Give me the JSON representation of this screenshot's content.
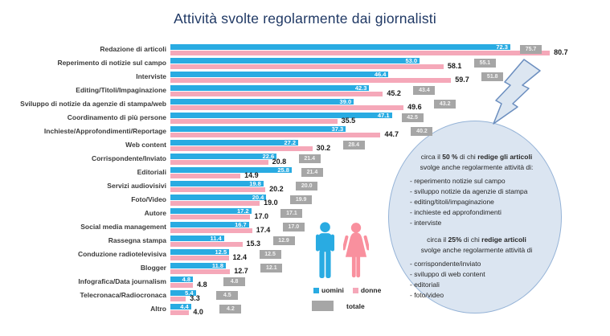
{
  "title": "Attività svolte regolarmente dai giornalisti",
  "colors": {
    "uomini": "#29ABE2",
    "donne": "#F5A8B9",
    "totale": "#A6A6A6",
    "title_text": "#1F3864",
    "bubble_fill": "#DBE5F1",
    "bubble_border": "#95B3D7",
    "bolt_fill": "#DCE6F1",
    "bolt_border": "#6B8EBF",
    "icon_male": "#29ABE2",
    "icon_female": "#F9909E"
  },
  "chart_data": {
    "type": "bar",
    "orientation": "horizontal",
    "xlim": [
      0,
      85
    ],
    "grid": false,
    "legend_position": "bottom-center",
    "categories": [
      "Redazione di articoli",
      "Reperimento di notizie sul campo",
      "Interviste",
      "Editing/Titoli/Impaginazione",
      "Sviluppo di notizie da agenzie di stampa/web",
      "Coordinamento di più persone",
      "Inchieste/Approfondimenti/Reportage",
      "Web content",
      "Corrispondente/Inviato",
      "Editoriali",
      "Servizi audiovisivi",
      "Foto/Video",
      "Autore",
      "Social media management",
      "Rassegna stampa",
      "Conduzione radiotelevisiva",
      "Blogger",
      "Infografica/Data journalism",
      "Telecronaca/Radiocronaca",
      "Altro"
    ],
    "series": [
      {
        "name": "uomini",
        "color": "#29ABE2",
        "values": [
          72.3,
          53.0,
          46.4,
          42.3,
          39.0,
          47.1,
          37.3,
          27.2,
          22.6,
          25.8,
          19.8,
          20.4,
          17.2,
          16.7,
          11.4,
          12.5,
          11.8,
          4.8,
          5.4,
          4.4
        ]
      },
      {
        "name": "donne",
        "color": "#F5A8B9",
        "values": [
          80.7,
          58.1,
          59.7,
          45.2,
          49.6,
          35.5,
          44.7,
          30.2,
          20.8,
          14.9,
          20.2,
          19.0,
          17.0,
          17.4,
          15.3,
          12.4,
          12.7,
          4.8,
          3.3,
          4.0
        ]
      },
      {
        "name": "totale",
        "color": "#A6A6A6",
        "values": [
          75.7,
          55.1,
          51.8,
          43.4,
          43.2,
          42.5,
          40.2,
          28.4,
          21.4,
          21.4,
          20.0,
          19.9,
          17.1,
          17.0,
          12.9,
          12.5,
          12.1,
          4.8,
          4.5,
          4.2
        ]
      }
    ]
  },
  "legend": {
    "uomini": "uomini",
    "donne": "donne",
    "totale": "totale"
  },
  "bubble": {
    "heading1": [
      [
        "circa il ",
        false
      ],
      [
        "50 %",
        true
      ],
      [
        "  di chi ",
        false
      ],
      [
        "redige gli articoli",
        true
      ]
    ],
    "subheading1": "svolge anche regolarmente attività di:",
    "list1": [
      "- reperimento notizie sul campo",
      "- sviluppo notizie da agenzie di stampa",
      "- editing/titoli/impaginazione",
      "- inchieste ed approfondimenti",
      "- interviste"
    ],
    "heading2": [
      [
        "circa il ",
        false
      ],
      [
        "25%",
        true
      ],
      [
        " di chi ",
        false
      ],
      [
        "redige articoli",
        true
      ]
    ],
    "subheading2": "svolge anche regolarmente attività di",
    "list2": [
      "- corrispondente/inviato",
      "- sviluppo di web content",
      "- editoriali",
      "- foto/video"
    ]
  }
}
